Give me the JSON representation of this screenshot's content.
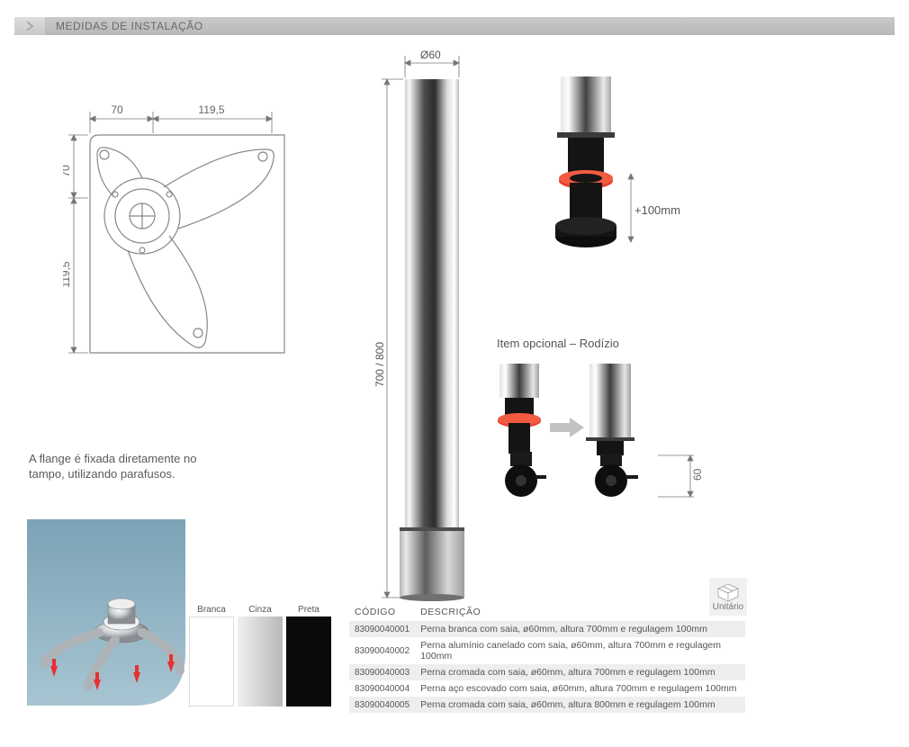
{
  "header": {
    "title": "MEDIDAS DE INSTALAÇÃO"
  },
  "flange_diagram": {
    "dim_top_left": "70",
    "dim_top_right": "119,5",
    "dim_left_top": "70",
    "dim_left_bottom": "119,5",
    "line_color": "#888888",
    "fill_color": "#ffffff",
    "stroke_width": 1
  },
  "flange_note": "A flange é fixada diretamente no tampo, utilizando parafusos.",
  "flange_photo": {
    "arrow_color": "#e83030",
    "tabletop_color": "#8fb3c4",
    "flange_color": "#d0d4d8"
  },
  "tube": {
    "diameter_label": "Ø60",
    "height_label": "700 / 800",
    "tube_gradient_left": "#f5f5f5",
    "tube_gradient_mid": "#585858",
    "tube_gradient_right": "#ffffff",
    "base_color": "#8e8e8e"
  },
  "foot_detail": {
    "adjustment_label": "+100mm",
    "chrome_left": "#d8d8d8",
    "chrome_right": "#3a3a3a",
    "ring_color": "#e8402a",
    "foot_color": "#141414"
  },
  "optional": {
    "label": "Item opcional – Rodízio",
    "dim_label": "60",
    "arrow_color": "#bdbdbd",
    "caster_color": "#1a1a1a"
  },
  "swatches": [
    {
      "label": "Branca",
      "color": "#ffffff",
      "border": "#dddddd"
    },
    {
      "label": "Cinza",
      "gradient_start": "#f0f0f0",
      "gradient_end": "#b8b8b8"
    },
    {
      "label": "Preta",
      "color": "#0a0a0a"
    }
  ],
  "unit_box": {
    "label": "Unitário",
    "bg": "#f1f1f1",
    "icon_stroke": "#b0b0b0"
  },
  "table": {
    "headers": [
      "CÓDIGO",
      "DESCRIÇÃO"
    ],
    "rows": [
      [
        "83090040001",
        "Perna branca com saia, ø60mm, altura 700mm e regulagem 100mm"
      ],
      [
        "83090040002",
        "Perna alumínio canelado com saia, ø60mm, altura 700mm e regulagem 100mm"
      ],
      [
        "83090040003",
        "Perna cromada com saia, ø60mm, altura 700mm e regulagem 100mm"
      ],
      [
        "83090040004",
        "Perna aço escovado com saia, ø60mm, altura 700mm e regulagem 100mm"
      ],
      [
        "83090040005",
        "Perna cromada com saia, ø60mm, altura 800mm e regulagem 100mm"
      ]
    ],
    "row_odd_bg": "#eeeeee",
    "row_even_bg": "#ffffff"
  }
}
